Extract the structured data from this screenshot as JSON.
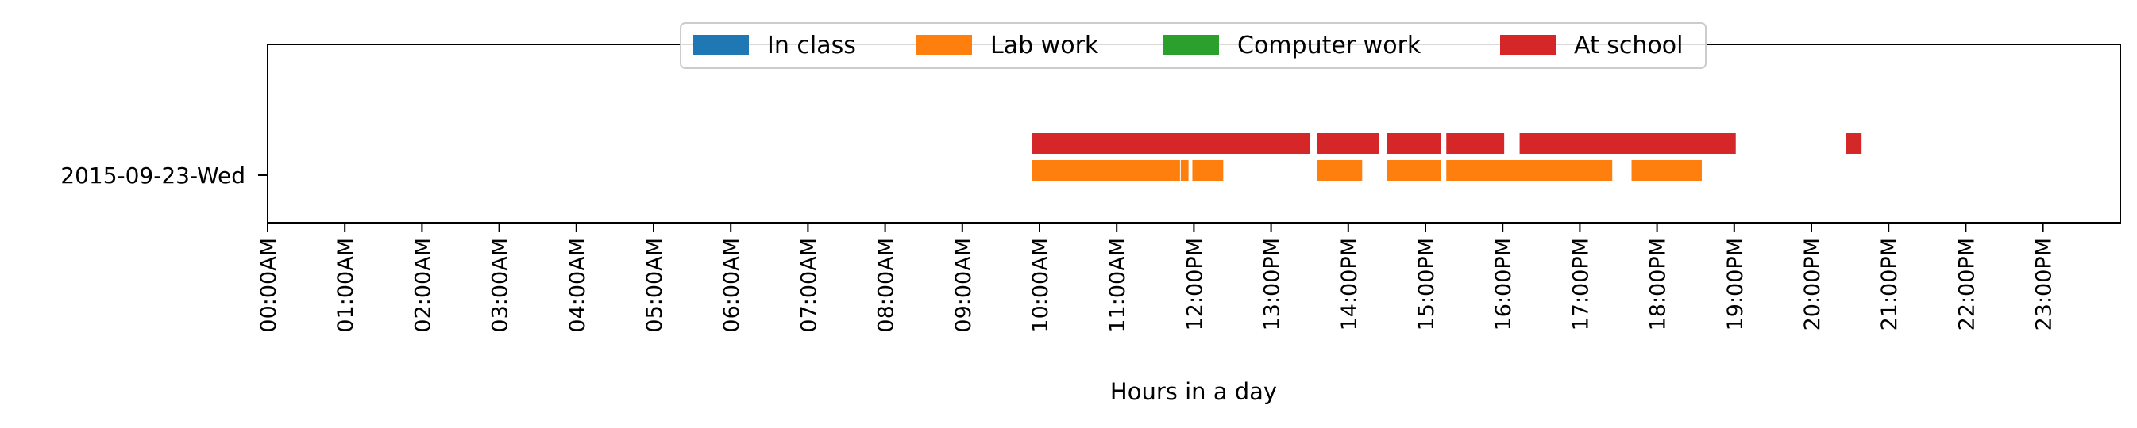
{
  "chart_data": {
    "type": "broken_barh",
    "xlabel": "Hours in a day",
    "ylabel": "",
    "xlim_hours": [
      0,
      24
    ],
    "x_ticks": [
      "00:00AM",
      "01:00AM",
      "02:00AM",
      "03:00AM",
      "04:00AM",
      "05:00AM",
      "06:00AM",
      "07:00AM",
      "08:00AM",
      "09:00AM",
      "10:00AM",
      "11:00AM",
      "12:00PM",
      "13:00PM",
      "14:00PM",
      "15:00PM",
      "16:00PM",
      "17:00PM",
      "18:00PM",
      "19:00PM",
      "20:00PM",
      "21:00PM",
      "22:00PM",
      "23:00PM"
    ],
    "y_categories": [
      "2015-09-23-Wed"
    ],
    "grid": false,
    "legend_position": "top-center",
    "series": [
      {
        "name": "In class",
        "color": "#1f77b4",
        "intervals_hours": []
      },
      {
        "name": "Lab work",
        "color": "#ff7f0e",
        "intervals_hours": [
          [
            9.9,
            11.82
          ],
          [
            11.83,
            11.93
          ],
          [
            11.98,
            12.38
          ],
          [
            13.6,
            14.18
          ],
          [
            14.5,
            15.2
          ],
          [
            15.27,
            17.42
          ],
          [
            17.67,
            18.58
          ]
        ]
      },
      {
        "name": "Computer work",
        "color": "#2ca02c",
        "intervals_hours": []
      },
      {
        "name": "At school",
        "color": "#d62728",
        "intervals_hours": [
          [
            9.9,
            13.5
          ],
          [
            13.6,
            14.4
          ],
          [
            14.5,
            15.2
          ],
          [
            15.27,
            16.02
          ],
          [
            16.22,
            19.02
          ],
          [
            20.45,
            20.65
          ]
        ]
      }
    ]
  }
}
